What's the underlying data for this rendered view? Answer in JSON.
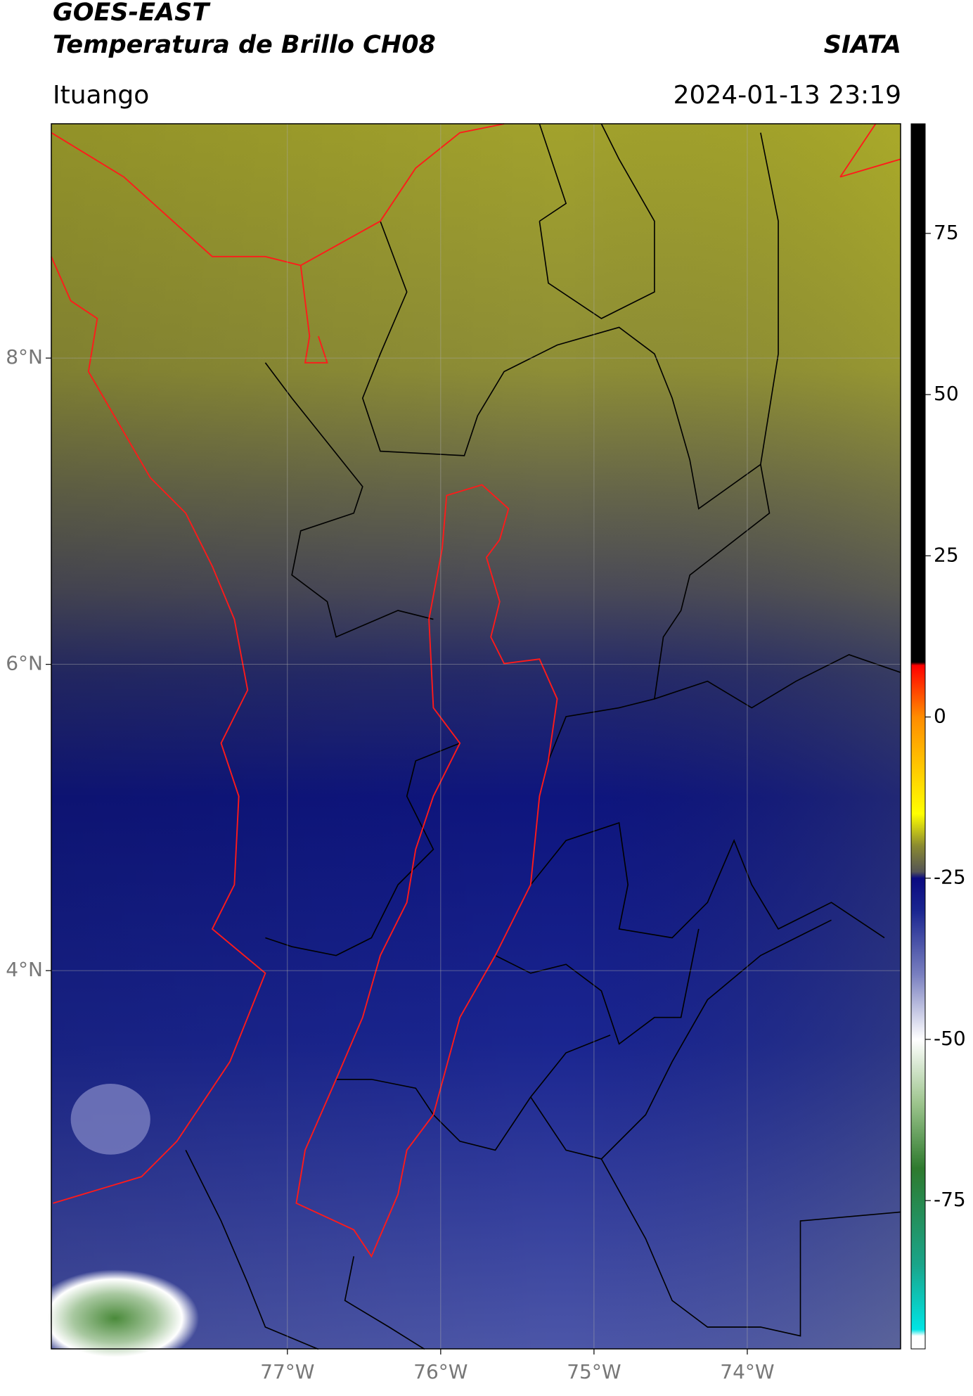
{
  "chart_data": {
    "type": "map",
    "title": "GOES-EAST",
    "subtitle": "Temperatura de Brillo CH08",
    "location": "Ituango",
    "source": "SIATA",
    "datetime": "2024-01-13 23:19",
    "xlim": [
      -78.54,
      -73.0
    ],
    "ylim": [
      1.53,
      9.53
    ],
    "xticks": [
      {
        "value": -77,
        "label": "77°W"
      },
      {
        "value": -76,
        "label": "76°W"
      },
      {
        "value": -75,
        "label": "75°W"
      },
      {
        "value": -74,
        "label": "74°W"
      }
    ],
    "yticks": [
      {
        "value": 4,
        "label": "4°N"
      },
      {
        "value": 6,
        "label": "6°N"
      },
      {
        "value": 8,
        "label": "8°N"
      }
    ],
    "grid": true,
    "clim": [
      -98,
      92
    ],
    "cticks": [
      -75,
      -50,
      -25,
      0,
      25,
      50,
      75
    ],
    "colorbar": [
      {
        "value": -98,
        "color": "#ffffff"
      },
      {
        "value": -96,
        "color": "#ffffff"
      },
      {
        "value": -95,
        "color": "#00e5e5"
      },
      {
        "value": -85,
        "color": "#1aa58a"
      },
      {
        "value": -70,
        "color": "#2e7a2e"
      },
      {
        "value": -60,
        "color": "#9cc48c"
      },
      {
        "value": -50,
        "color": "#ffffff"
      },
      {
        "value": -40,
        "color": "#7a80c0"
      },
      {
        "value": -30,
        "color": "#1a2590"
      },
      {
        "value": -25,
        "color": "#0a0a80"
      },
      {
        "value": -24,
        "color": "#555555"
      },
      {
        "value": -20,
        "color": "#8a8a30"
      },
      {
        "value": -15,
        "color": "#ffff00"
      },
      {
        "value": 0,
        "color": "#ff8c00"
      },
      {
        "value": 8,
        "color": "#ff0000"
      },
      {
        "value": 8.5,
        "color": "#000000"
      },
      {
        "value": 92,
        "color": "#000000"
      }
    ]
  }
}
